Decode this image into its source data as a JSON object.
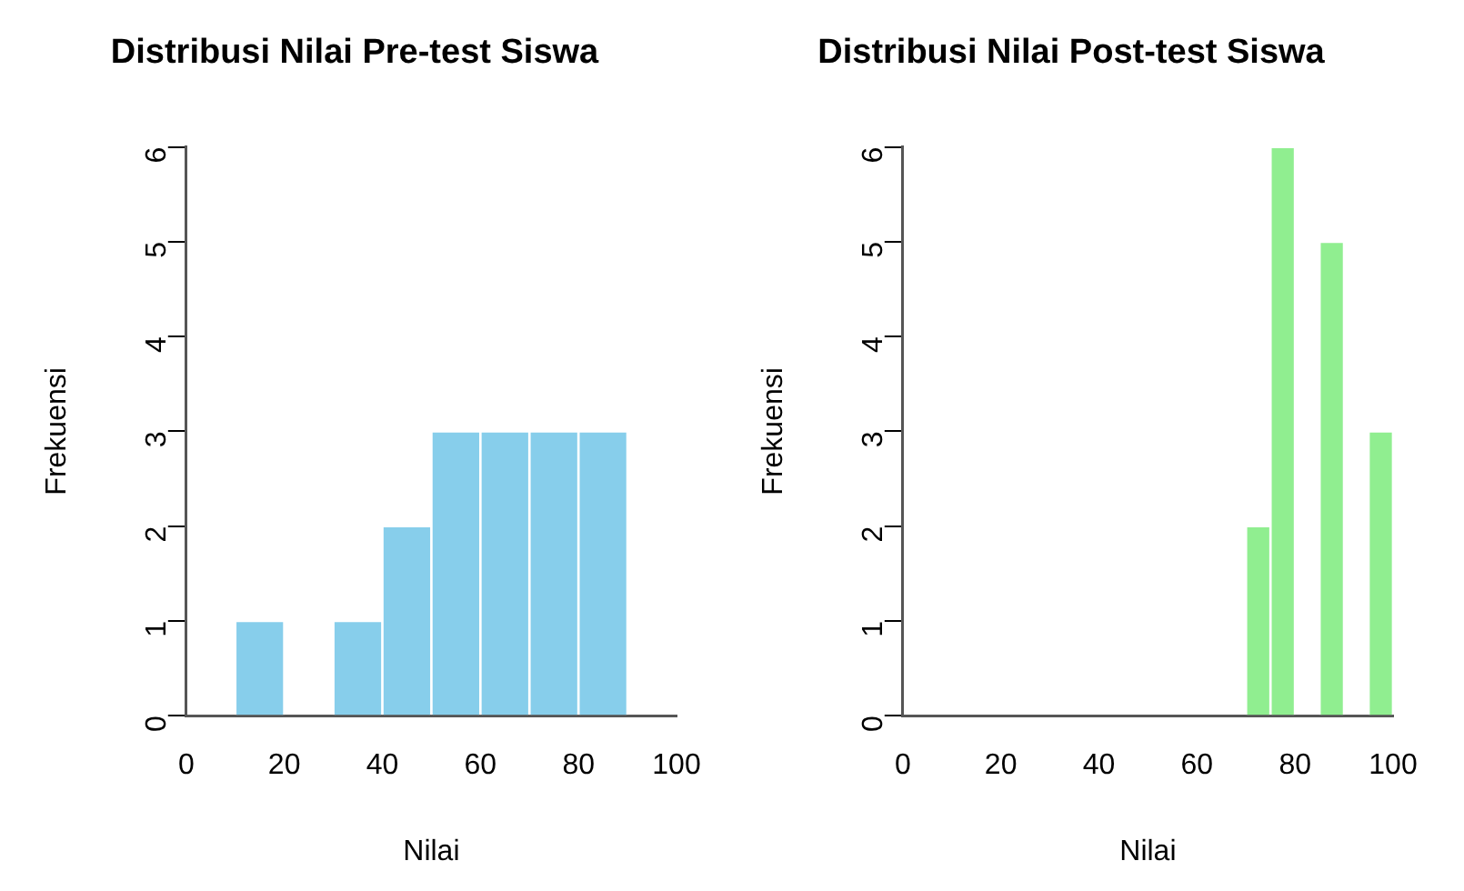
{
  "chart_data": [
    {
      "type": "histogram",
      "title": "Distribusi Nilai Pre-test Siswa",
      "xlabel": "Nilai",
      "ylabel": "Frekuensi",
      "bins": [
        10,
        20,
        30,
        40,
        50,
        60,
        70,
        80,
        90
      ],
      "values": [
        1,
        0,
        1,
        2,
        3,
        3,
        3,
        3
      ],
      "color": "#87ceeb",
      "xlim": [
        0,
        100
      ],
      "xticks": [
        0,
        20,
        40,
        60,
        80,
        100
      ],
      "ylim": [
        0,
        6
      ],
      "yticks": [
        0,
        1,
        2,
        3,
        4,
        5,
        6
      ],
      "grid": false
    },
    {
      "type": "histogram",
      "title": "Distribusi Nilai Post-test Siswa",
      "xlabel": "Nilai",
      "ylabel": "Frekuensi",
      "bins": [
        70,
        75,
        80,
        85,
        90,
        95,
        100
      ],
      "values": [
        2,
        6,
        0,
        5,
        0,
        3
      ],
      "color": "#90ee90",
      "xlim": [
        0,
        100
      ],
      "xticks": [
        0,
        20,
        40,
        60,
        80,
        100
      ],
      "ylim": [
        0,
        6
      ],
      "yticks": [
        0,
        1,
        2,
        3,
        4,
        5,
        6
      ],
      "grid": false
    }
  ]
}
